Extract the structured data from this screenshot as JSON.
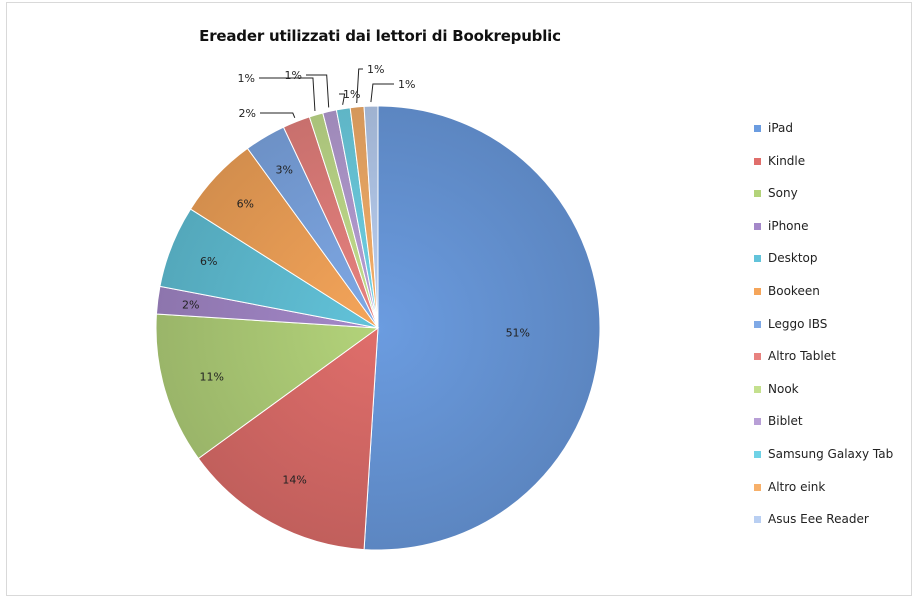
{
  "chart_data": {
    "type": "pie",
    "title": "Ereader utilizzati dai lettori di Bookrepublic",
    "legend_position": "right",
    "start_angle_deg": 0,
    "direction": "clockwise",
    "slices": [
      {
        "label": "iPad",
        "value": 51,
        "display": "51%",
        "color": "#6b9ce0"
      },
      {
        "label": "Kindle",
        "value": 14,
        "display": "14%",
        "color": "#e06e6b"
      },
      {
        "label": "Sony",
        "value": 11,
        "display": "11%",
        "color": "#b3d37a"
      },
      {
        "label": "iPhone",
        "value": 2,
        "display": "2%",
        "color": "#a488c9"
      },
      {
        "label": "Desktop",
        "value": 6,
        "display": "6%",
        "color": "#62c3da"
      },
      {
        "label": "Bookeen",
        "value": 6,
        "display": "6%",
        "color": "#f5a55a"
      },
      {
        "label": "Leggo IBS",
        "value": 3,
        "display": "3%",
        "color": "#7fa9e6"
      },
      {
        "label": "Altro Tablet",
        "value": 2,
        "display": "2%",
        "color": "#e8827f"
      },
      {
        "label": "Nook",
        "value": 1,
        "display": "1%",
        "color": "#c4e08e"
      },
      {
        "label": "Biblet",
        "value": 1,
        "display": "1%",
        "color": "#b89fd6"
      },
      {
        "label": "Samsung Galaxy Tab",
        "value": 1,
        "display": "1%",
        "color": "#6fd2e6"
      },
      {
        "label": "Altro eink",
        "value": 1,
        "display": "1%",
        "color": "#f7b06a"
      },
      {
        "label": "Asus Eee Reader",
        "value": 1,
        "display": "1%",
        "color": "#b9cff2"
      }
    ]
  }
}
